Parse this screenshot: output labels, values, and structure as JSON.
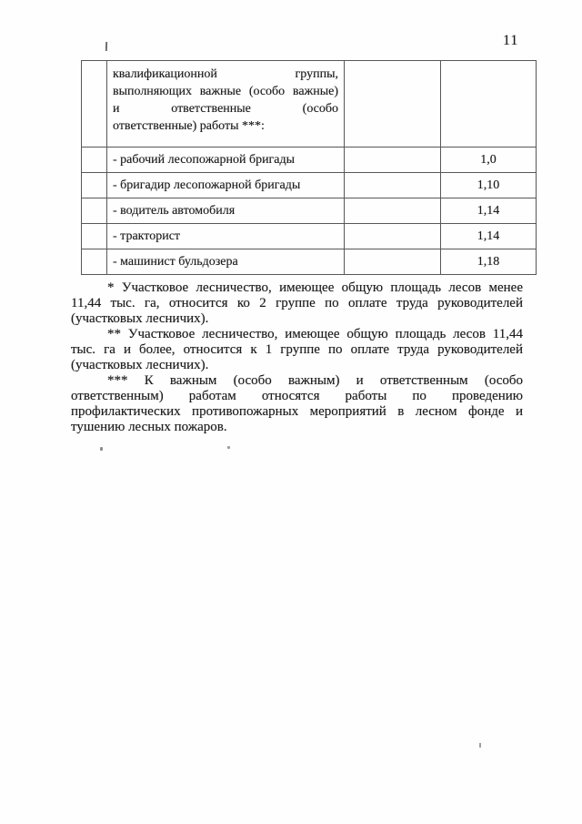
{
  "page": {
    "number": "11"
  },
  "table": {
    "header_lines": [
      "квалификационной группы,",
      "выполняющих важные (особо важные)",
      "и ответственные (особо",
      "ответственные) работы ***:"
    ],
    "rows": [
      {
        "label": "- рабочий лесопожарной бригады",
        "value": "1,0"
      },
      {
        "label": "- бригадир лесопожарной бригады",
        "value": "1,10"
      },
      {
        "label": "- водитель автомобиля",
        "value": "1,14"
      },
      {
        "label": "- тракторист",
        "value": "1,14"
      },
      {
        "label": "- машинист бульдозера",
        "value": "1,18"
      }
    ]
  },
  "footnotes": [
    {
      "lines": [
        "* Участковое лесничество, имеющее общую площадь лесов менее",
        "11,44 тыс. га, относится ко 2 группе по оплате труда руководителей",
        "(участковых лесничих)."
      ]
    },
    {
      "lines": [
        "** Участковое лесничество, имеющее общую площадь лесов 11,44",
        "тыс. га и более, относится к 1 группе по оплате труда руководителей",
        "(участковых лесничих)."
      ]
    },
    {
      "lines": [
        "*** К важным (особо важным) и ответственным (особо",
        "ответственным) работам относятся работы по проведению",
        "профилактических противопожарных мероприятий в лесном фонде и",
        "тушению лесных пожаров."
      ]
    }
  ]
}
